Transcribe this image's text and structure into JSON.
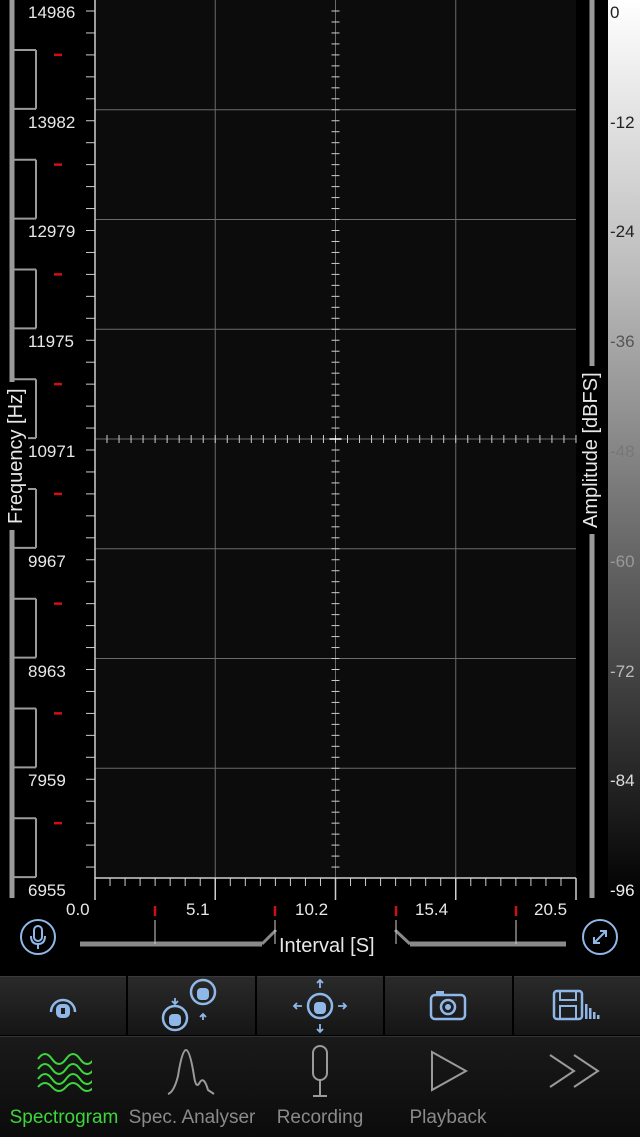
{
  "frequency_axis": {
    "title": "Frequency [Hz]",
    "labels": [
      "14986",
      "13982",
      "12979",
      "11975",
      "10971",
      "9967",
      "8963",
      "7959",
      "6955"
    ]
  },
  "amplitude_axis": {
    "title": "Amplitude [dBFS]",
    "labels": [
      "0",
      "-12",
      "-24",
      "-36",
      "-48",
      "-60",
      "-72",
      "-84",
      "-96"
    ]
  },
  "time_axis": {
    "title": "Interval [S]",
    "labels": [
      "0.0",
      "5.1",
      "10.2",
      "15.4",
      "20.5"
    ]
  },
  "colors": {
    "accent": "#8fb8e8",
    "active_tab": "#3cd63c",
    "marker": "#d01010"
  },
  "buttons": {
    "microphone": "microphone-icon",
    "expand": "expand-icon"
  },
  "toolbar": [
    {
      "name": "lock-cursor-button",
      "icon": "lock-icon"
    },
    {
      "name": "zoom-vertical-button",
      "icon": "zoom-vertical-icon"
    },
    {
      "name": "pan-button",
      "icon": "pan-icon"
    },
    {
      "name": "snapshot-button",
      "icon": "camera-icon"
    },
    {
      "name": "save-button",
      "icon": "save-icon"
    }
  ],
  "tabs": [
    {
      "label": "Spectrogram",
      "icon": "spectrogram-icon",
      "active": true
    },
    {
      "label": "Spec. Analyser",
      "icon": "spectrum-analyser-icon",
      "active": false
    },
    {
      "label": "Recording",
      "icon": "microphone-icon",
      "active": false
    },
    {
      "label": "Playback",
      "icon": "play-icon",
      "active": false
    },
    {
      "label": "",
      "icon": "more-icon",
      "active": false
    }
  ]
}
